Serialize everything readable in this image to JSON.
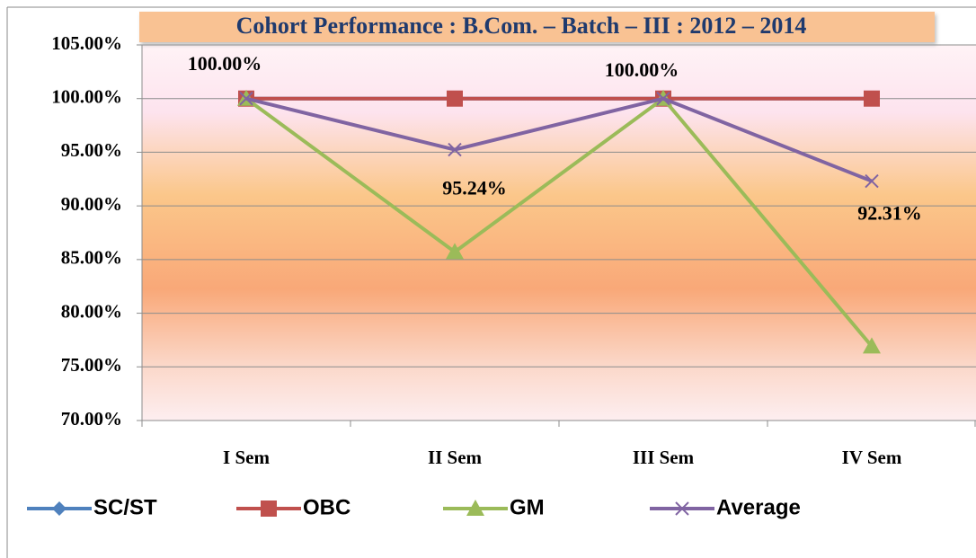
{
  "chart_data": {
    "type": "line",
    "title": "Cohort Performance : B.Com. – Batch – III  : 2012 – 2014",
    "categories": [
      "I Sem",
      "II Sem",
      "III Sem",
      "IV Sem"
    ],
    "series": [
      {
        "name": "SC/ST",
        "color": "#4f81bd",
        "marker": "diamond",
        "values": [
          100,
          100,
          100,
          100
        ]
      },
      {
        "name": "OBC",
        "color": "#c0504d",
        "marker": "square",
        "values": [
          100,
          100,
          100,
          100
        ]
      },
      {
        "name": "GM",
        "color": "#9bbb59",
        "marker": "triangle",
        "values": [
          100,
          85.71,
          100,
          76.92
        ]
      },
      {
        "name": "Average",
        "color": "#8064a2",
        "marker": "x",
        "values": [
          100,
          95.24,
          100,
          92.31
        ],
        "value_labels": [
          "100.00%",
          "95.24%",
          "100.00%",
          "92.31%"
        ]
      }
    ],
    "ylim": [
      70,
      105
    ],
    "yticks": [
      {
        "value": 70,
        "label": "70.00%"
      },
      {
        "value": 75,
        "label": "75.00%"
      },
      {
        "value": 80,
        "label": "80.00%"
      },
      {
        "value": 85,
        "label": "85.00%"
      },
      {
        "value": 90,
        "label": "90.00%"
      },
      {
        "value": 95,
        "label": "95.00%"
      },
      {
        "value": 100,
        "label": "100.00%"
      },
      {
        "value": 105,
        "label": "105.00%"
      }
    ],
    "grid": true,
    "legend": "bottom"
  }
}
